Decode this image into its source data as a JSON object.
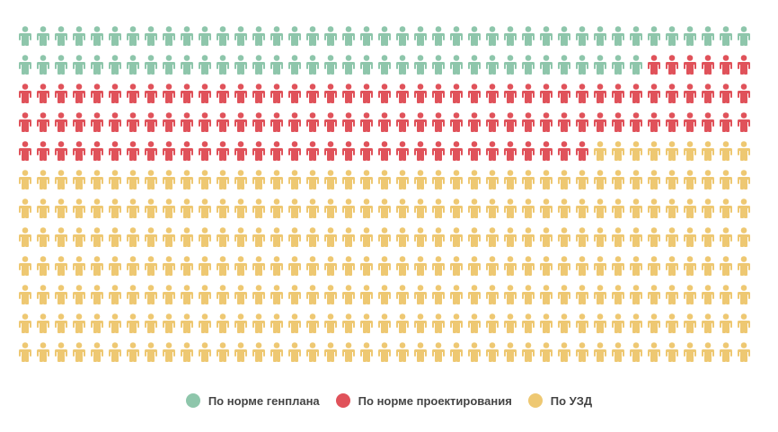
{
  "chart_data": {
    "type": "pictogram",
    "columns": 41,
    "series": [
      {
        "name": "По норме генплана",
        "color": "#8ec6ab",
        "values": 76
      },
      {
        "name": "По норме проектирования",
        "color": "#e0525a",
        "values": 120
      },
      {
        "name": "По УЗД",
        "color": "#eec872",
        "values": 296
      }
    ]
  }
}
